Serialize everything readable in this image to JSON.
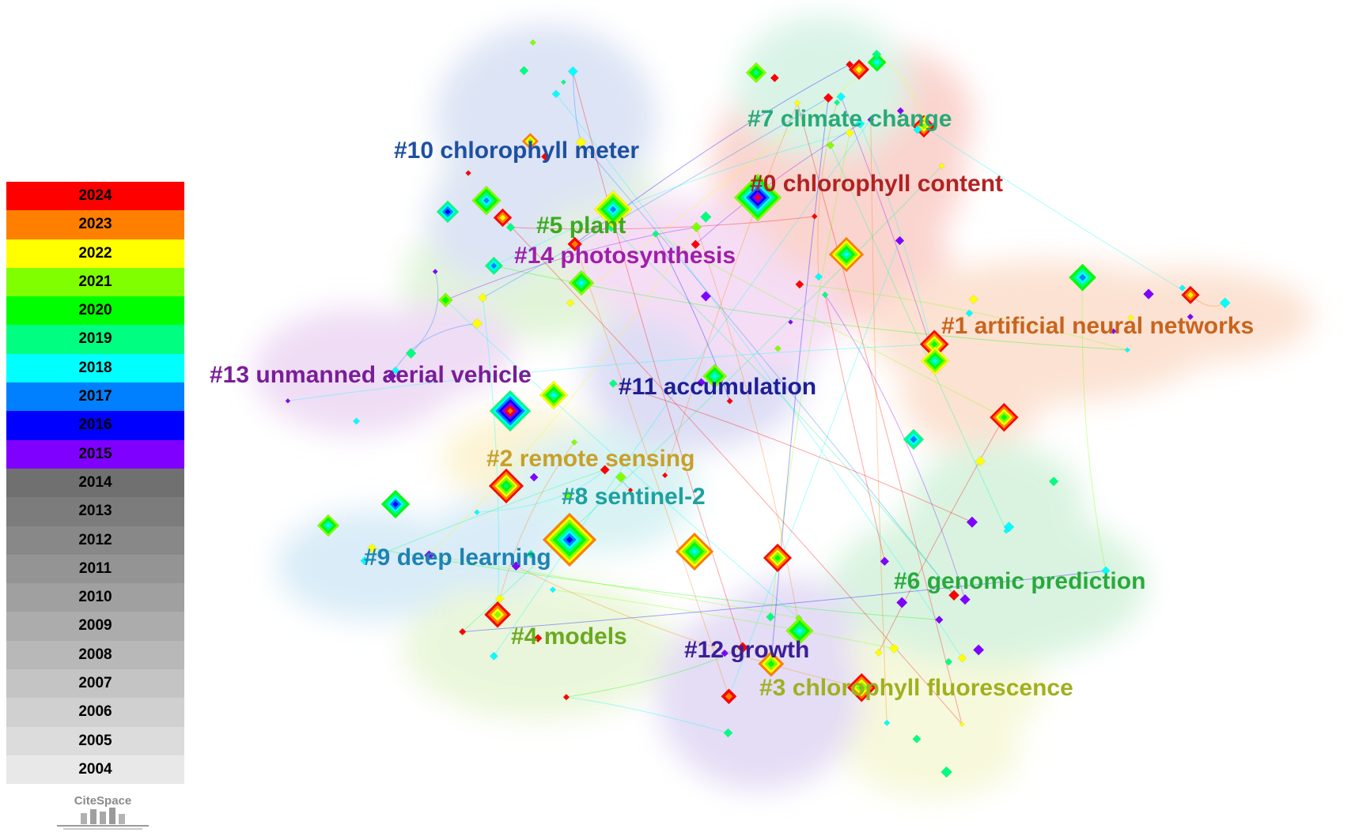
{
  "legend": {
    "years": [
      {
        "year": "2024",
        "color": "#ff0000"
      },
      {
        "year": "2023",
        "color": "#ff7f00"
      },
      {
        "year": "2022",
        "color": "#ffff00"
      },
      {
        "year": "2021",
        "color": "#80ff00"
      },
      {
        "year": "2020",
        "color": "#00ff00"
      },
      {
        "year": "2019",
        "color": "#00ff80"
      },
      {
        "year": "2018",
        "color": "#00ffff"
      },
      {
        "year": "2017",
        "color": "#0080ff"
      },
      {
        "year": "2016",
        "color": "#0000ff"
      },
      {
        "year": "2015",
        "color": "#8000ff"
      },
      {
        "year": "2014",
        "color": "#707070"
      },
      {
        "year": "2013",
        "color": "#7c7c7c"
      },
      {
        "year": "2012",
        "color": "#888888"
      },
      {
        "year": "2011",
        "color": "#949494"
      },
      {
        "year": "2010",
        "color": "#a0a0a0"
      },
      {
        "year": "2009",
        "color": "#acacac"
      },
      {
        "year": "2008",
        "color": "#b8b8b8"
      },
      {
        "year": "2007",
        "color": "#c4c4c4"
      },
      {
        "year": "2006",
        "color": "#d0d0d0"
      },
      {
        "year": "2005",
        "color": "#dcdcdc"
      },
      {
        "year": "2004",
        "color": "#e8e8e8"
      }
    ]
  },
  "logo": {
    "text": "CiteSpace"
  },
  "clusters": [
    {
      "label": "#0 chlorophyll content",
      "color": "#b22222",
      "hull": "#f9c6bf"
    },
    {
      "label": "#1 artificial neural networks",
      "color": "#c8641e",
      "hull": "#fbd9c4"
    },
    {
      "label": "#2 remote sensing",
      "color": "#c8a02a",
      "hull": "#fbf0c4"
    },
    {
      "label": "#3 chlorophyll fluorescence",
      "color": "#a0b020",
      "hull": "#f4f7cf"
    },
    {
      "label": "#4 models",
      "color": "#6aaa1e",
      "hull": "#e4f4cf"
    },
    {
      "label": "#5 plant",
      "color": "#3caa1e",
      "hull": "#d8f2cc"
    },
    {
      "label": "#6 genomic prediction",
      "color": "#28aa3c",
      "hull": "#cdf0d6"
    },
    {
      "label": "#7 climate change",
      "color": "#28aa78",
      "hull": "#cdf0e0"
    },
    {
      "label": "#8 sentinel-2",
      "color": "#1ea0a0",
      "hull": "#cdeef0"
    },
    {
      "label": "#9 deep learning",
      "color": "#1e82b4",
      "hull": "#cde6f5"
    },
    {
      "label": "#10 chlorophyll meter",
      "color": "#1e50a0",
      "hull": "#d2dcf2"
    },
    {
      "label": "#11 accumulation",
      "color": "#1e1e96",
      "hull": "#d2d2f2"
    },
    {
      "label": "#12 growth",
      "color": "#3c1e96",
      "hull": "#dcd2f2"
    },
    {
      "label": "#13 unmanned aerial vehicle",
      "color": "#781e96",
      "hull": "#ead2f2"
    },
    {
      "label": "#14 photosynthesis",
      "color": "#a01eaa",
      "hull": "#f2d2f2"
    }
  ]
}
